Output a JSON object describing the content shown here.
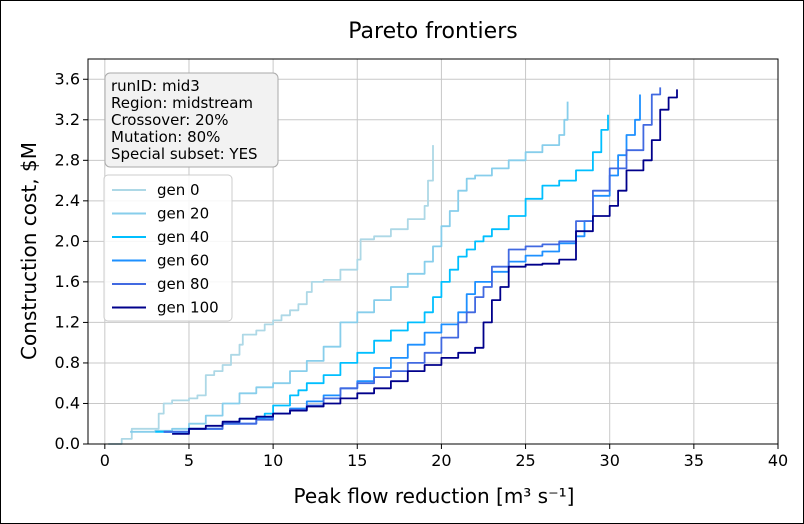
{
  "chart_data": {
    "type": "line",
    "title": "Pareto frontiers",
    "xlabel": "Peak flow reduction [m³ s⁻¹]",
    "ylabel": "Construction cost, $M",
    "xlim": [
      -1,
      40
    ],
    "ylim": [
      0,
      3.8
    ],
    "xticks": [
      0,
      5,
      10,
      15,
      20,
      25,
      30,
      35,
      40
    ],
    "yticks": [
      0.0,
      0.4,
      0.8,
      1.2,
      1.6,
      2.0,
      2.4,
      2.8,
      3.2,
      3.6
    ],
    "ytick_labels": [
      "0.0",
      "0.4",
      "0.8",
      "1.2",
      "1.6",
      "2.0",
      "2.4",
      "2.8",
      "3.2",
      "3.6"
    ],
    "grid": true,
    "legend_position": "upper-left",
    "info_box": [
      "runID: mid3",
      "Region: midstream",
      "Crossover: 20%",
      "Mutation: 80%",
      "Special subset: YES"
    ],
    "series": [
      {
        "name": "gen 0",
        "color": "#add8e6",
        "x": [
          0.2,
          1.0,
          1.6,
          3.2,
          3.5,
          4.0,
          5.0,
          5.5,
          6.0,
          6.0,
          6.5,
          7.0,
          7.5,
          8.0,
          8.2,
          9.0,
          9.5,
          10.0,
          10.5,
          11.0,
          11.5,
          12.0,
          12.3,
          13.0,
          14.0,
          15.0,
          15.2,
          16.0,
          17.0,
          18.0,
          19.0,
          19.2,
          19.5
        ],
        "y": [
          0.0,
          0.05,
          0.15,
          0.3,
          0.4,
          0.43,
          0.45,
          0.48,
          0.5,
          0.68,
          0.72,
          0.78,
          0.88,
          0.98,
          1.08,
          1.12,
          1.18,
          1.22,
          1.27,
          1.32,
          1.38,
          1.5,
          1.6,
          1.62,
          1.72,
          1.82,
          2.02,
          2.05,
          2.12,
          2.22,
          2.35,
          2.6,
          2.95
        ]
      },
      {
        "name": "gen 20",
        "color": "#87ceeb",
        "x": [
          1.5,
          3.0,
          4.0,
          5.0,
          6.0,
          7.0,
          8.0,
          9.0,
          10.0,
          11.0,
          12.0,
          13.0,
          14.0,
          15.0,
          16.0,
          17.0,
          18.0,
          19.0,
          19.5,
          20.0,
          20.5,
          21.0,
          21.5,
          22.0,
          23.0,
          24.0,
          25.0,
          26.0,
          27.0,
          27.3,
          27.5
        ],
        "y": [
          0.12,
          0.13,
          0.15,
          0.2,
          0.28,
          0.4,
          0.5,
          0.56,
          0.6,
          0.72,
          0.82,
          0.96,
          1.2,
          1.3,
          1.42,
          1.55,
          1.68,
          1.8,
          1.95,
          2.15,
          2.3,
          2.5,
          2.62,
          2.65,
          2.72,
          2.8,
          2.88,
          2.95,
          3.05,
          3.2,
          3.38
        ]
      },
      {
        "name": "gen 40",
        "color": "#00bfff",
        "x": [
          3.0,
          5.0,
          7.0,
          8.0,
          9.5,
          10.0,
          11.0,
          11.5,
          12.0,
          13.0,
          14.0,
          15.0,
          16.0,
          17.0,
          18.0,
          19.0,
          19.5,
          20.0,
          20.5,
          21.0,
          21.5,
          22.0,
          22.5,
          23.0,
          24.0,
          25.0,
          26.0,
          27.0,
          28.0,
          29.0,
          29.5,
          29.9
        ],
        "y": [
          0.12,
          0.15,
          0.2,
          0.25,
          0.3,
          0.38,
          0.48,
          0.53,
          0.6,
          0.68,
          0.8,
          0.9,
          1.02,
          1.12,
          1.2,
          1.3,
          1.45,
          1.6,
          1.72,
          1.85,
          1.92,
          2.0,
          2.05,
          2.12,
          2.25,
          2.42,
          2.55,
          2.6,
          2.7,
          2.88,
          3.1,
          3.25
        ]
      },
      {
        "name": "gen 60",
        "color": "#1e90ff",
        "x": [
          3.5,
          5.0,
          7.0,
          9.0,
          10.0,
          11.0,
          12.0,
          13.0,
          14.0,
          15.0,
          16.0,
          17.0,
          18.0,
          19.0,
          20.0,
          21.0,
          21.5,
          22.0,
          23.0,
          24.0,
          25.0,
          26.0,
          27.0,
          28.0,
          28.5,
          29.0,
          30.0,
          30.5,
          31.0,
          31.5,
          31.8
        ],
        "y": [
          0.12,
          0.15,
          0.2,
          0.26,
          0.3,
          0.35,
          0.42,
          0.48,
          0.55,
          0.62,
          0.75,
          0.85,
          0.98,
          1.1,
          1.18,
          1.3,
          1.48,
          1.6,
          1.7,
          1.8,
          1.86,
          1.9,
          1.98,
          2.05,
          2.2,
          2.45,
          2.65,
          2.85,
          3.05,
          3.2,
          3.45
        ]
      },
      {
        "name": "gen 80",
        "color": "#4169e1",
        "x": [
          3.5,
          5.0,
          7.0,
          9.0,
          10.0,
          11.0,
          12.0,
          13.0,
          14.0,
          15.0,
          16.0,
          17.0,
          18.0,
          19.0,
          20.0,
          21.0,
          21.5,
          22.0,
          22.5,
          23.0,
          24.0,
          25.0,
          26.0,
          27.0,
          28.0,
          29.0,
          30.0,
          31.0,
          32.0,
          32.5,
          33.0
        ],
        "y": [
          0.12,
          0.15,
          0.2,
          0.24,
          0.3,
          0.34,
          0.38,
          0.45,
          0.55,
          0.6,
          0.66,
          0.72,
          0.8,
          0.9,
          1.05,
          1.2,
          1.3,
          1.45,
          1.55,
          1.75,
          1.92,
          1.95,
          1.97,
          2.0,
          2.2,
          2.5,
          2.72,
          2.9,
          3.15,
          3.45,
          3.52
        ]
      },
      {
        "name": "gen 100",
        "color": "#00008b",
        "x": [
          4.0,
          5.0,
          6.0,
          7.0,
          8.0,
          9.0,
          10.0,
          11.0,
          12.0,
          13.0,
          14.0,
          15.0,
          16.0,
          17.0,
          18.0,
          19.0,
          20.0,
          21.0,
          22.0,
          22.5,
          23.0,
          23.5,
          24.0,
          25.0,
          26.0,
          27.0,
          28.0,
          29.0,
          30.0,
          30.5,
          31.0,
          32.0,
          32.5,
          33.0,
          33.5,
          34.0
        ],
        "y": [
          0.1,
          0.15,
          0.18,
          0.22,
          0.25,
          0.27,
          0.3,
          0.33,
          0.37,
          0.4,
          0.45,
          0.5,
          0.55,
          0.62,
          0.72,
          0.78,
          0.85,
          0.9,
          0.95,
          1.2,
          1.42,
          1.55,
          1.75,
          1.77,
          1.78,
          1.82,
          2.1,
          2.25,
          2.35,
          2.5,
          2.7,
          2.8,
          3.0,
          3.3,
          3.42,
          3.5
        ]
      }
    ]
  }
}
